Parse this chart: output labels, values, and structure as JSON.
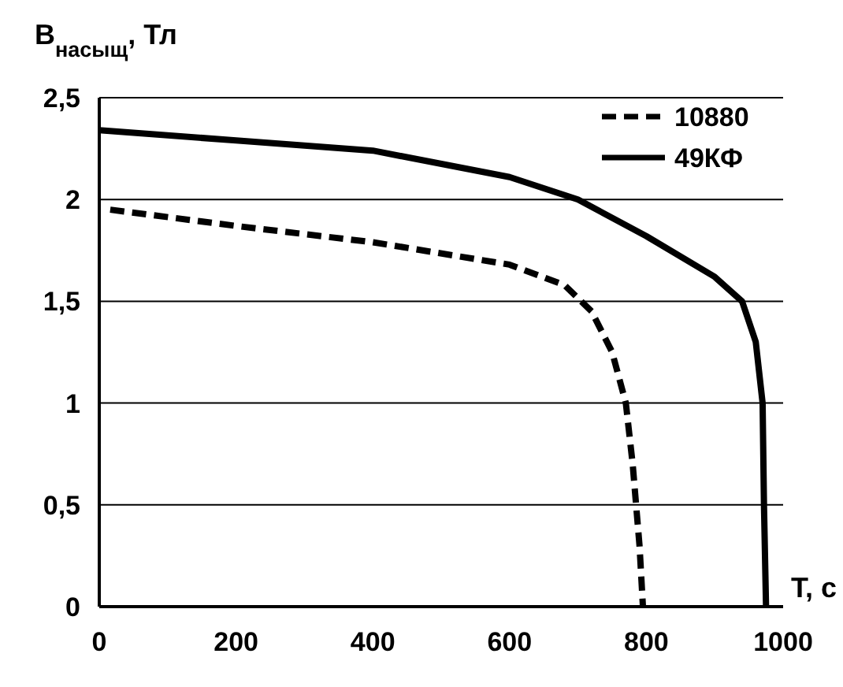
{
  "chart_data": {
    "type": "line",
    "xlabel": "T, c",
    "ylabel": "B$_{насыщ}$, Тл",
    "xlim": [
      0,
      1000
    ],
    "ylim": [
      0,
      2.5
    ],
    "xticks": [
      0,
      200,
      400,
      600,
      800,
      1000
    ],
    "yticks": [
      0,
      {
        "value": 0.5,
        "label": "0,5"
      },
      1,
      {
        "value": 1.5,
        "label": "1,5"
      },
      2,
      {
        "value": 2.5,
        "label": "2,5"
      }
    ],
    "grid": "y",
    "legend": "top right",
    "series": [
      {
        "name": "10880",
        "color": "#000000",
        "line_style": "dashed",
        "x": [
          16,
          200,
          400,
          600,
          680,
          720,
          750,
          770,
          780,
          790,
          795
        ],
        "values": [
          1.95,
          1.87,
          1.79,
          1.68,
          1.58,
          1.45,
          1.25,
          1.0,
          0.7,
          0.3,
          0
        ]
      },
      {
        "name": "49КФ",
        "color": "#000000",
        "line_style": "solid",
        "x": [
          0,
          200,
          400,
          600,
          700,
          800,
          900,
          940,
          960,
          970,
          972,
          975
        ],
        "values": [
          2.34,
          2.29,
          2.24,
          2.11,
          2.0,
          1.82,
          1.62,
          1.5,
          1.3,
          1.0,
          0.5,
          0
        ]
      }
    ]
  }
}
